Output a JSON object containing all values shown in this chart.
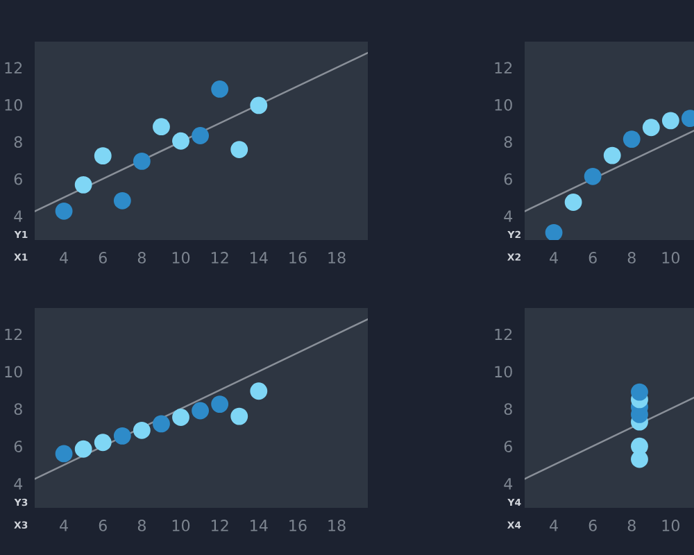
{
  "chart_data": [
    {
      "type": "scatter",
      "xlabel": "X1",
      "ylabel": "Y1",
      "xlim": [
        2.5,
        19.6
      ],
      "ylim": [
        2.7,
        13.4
      ],
      "xticks": [
        4,
        6,
        8,
        10,
        12,
        14,
        16,
        18
      ],
      "yticks": [
        4,
        6,
        8,
        10,
        12
      ],
      "grid": false,
      "legend": false,
      "series": [
        {
          "marker": "circle",
          "x": [
            4,
            5,
            6,
            7,
            8,
            9,
            10,
            11,
            12,
            13,
            14
          ],
          "values": [
            4.26,
            5.68,
            7.24,
            4.82,
            6.95,
            8.81,
            8.04,
            8.33,
            10.84,
            7.58,
            9.96
          ],
          "colors": [
            "#2e8bc9",
            "#7fd6f5",
            "#7fd6f5",
            "#2e8bc9",
            "#2e8bc9",
            "#7fd6f5",
            "#7fd6f5",
            "#2e8bc9",
            "#2e8bc9",
            "#7fd6f5",
            "#7fd6f5"
          ]
        },
        {
          "type": "line",
          "color": "#8a9099",
          "x": [
            2.5,
            19.6
          ],
          "values": [
            4.25,
            12.8
          ]
        }
      ]
    },
    {
      "type": "scatter",
      "xlabel": "X2",
      "ylabel": "Y2",
      "xlim": [
        2.5,
        11.2
      ],
      "ylim": [
        2.7,
        13.4
      ],
      "xticks": [
        4,
        6,
        8,
        10
      ],
      "yticks": [
        4,
        6,
        8,
        10,
        12
      ],
      "grid": false,
      "legend": false,
      "series": [
        {
          "marker": "circle",
          "x": [
            4,
            5,
            6,
            7,
            8,
            9,
            10,
            11
          ],
          "values": [
            3.1,
            4.74,
            6.13,
            7.26,
            8.14,
            8.77,
            9.14,
            9.26
          ],
          "colors": [
            "#2e8bc9",
            "#7fd6f5",
            "#2e8bc9",
            "#7fd6f5",
            "#2e8bc9",
            "#7fd6f5",
            "#7fd6f5",
            "#2e8bc9"
          ]
        },
        {
          "type": "line",
          "color": "#8a9099",
          "x": [
            2.5,
            11.2
          ],
          "values": [
            4.25,
            8.6
          ]
        }
      ]
    },
    {
      "type": "scatter",
      "xlabel": "X3",
      "ylabel": "Y3",
      "xlim": [
        2.5,
        19.6
      ],
      "ylim": [
        2.7,
        13.4
      ],
      "xticks": [
        4,
        6,
        8,
        10,
        12,
        14,
        16,
        18
      ],
      "yticks": [
        4,
        6,
        8,
        10,
        12
      ],
      "grid": false,
      "legend": false,
      "series": [
        {
          "marker": "circle",
          "x": [
            4,
            5,
            6,
            7,
            8,
            9,
            10,
            11,
            12,
            13,
            14
          ],
          "values": [
            5.6,
            5.85,
            6.2,
            6.55,
            6.85,
            7.2,
            7.55,
            7.9,
            8.25,
            7.6,
            8.95
          ],
          "colors": [
            "#2e8bc9",
            "#7fd6f5",
            "#7fd6f5",
            "#2e8bc9",
            "#7fd6f5",
            "#2e8bc9",
            "#7fd6f5",
            "#2e8bc9",
            "#2e8bc9",
            "#7fd6f5",
            "#7fd6f5"
          ]
        },
        {
          "type": "line",
          "color": "#8a9099",
          "x": [
            2.5,
            19.6
          ],
          "values": [
            4.25,
            12.8
          ]
        }
      ]
    },
    {
      "type": "scatter",
      "xlabel": "X4",
      "ylabel": "Y4",
      "xlim": [
        2.5,
        11.2
      ],
      "ylim": [
        2.7,
        13.4
      ],
      "xticks": [
        4,
        6,
        8,
        10
      ],
      "yticks": [
        4,
        6,
        8,
        10,
        12
      ],
      "grid": false,
      "legend": false,
      "series": [
        {
          "marker": "circle",
          "x": [
            8.4,
            8.4,
            8.4,
            8.4,
            8.4,
            8.4,
            8.4
          ],
          "values": [
            5.3,
            6.0,
            7.3,
            7.7,
            8.1,
            8.5,
            8.9
          ],
          "colors": [
            "#7fd6f5",
            "#7fd6f5",
            "#7fd6f5",
            "#2e8bc9",
            "#2e8bc9",
            "#7fd6f5",
            "#2e8bc9"
          ]
        },
        {
          "type": "line",
          "color": "#8a9099",
          "x": [
            2.5,
            11.2
          ],
          "values": [
            4.25,
            8.6
          ]
        }
      ]
    }
  ]
}
